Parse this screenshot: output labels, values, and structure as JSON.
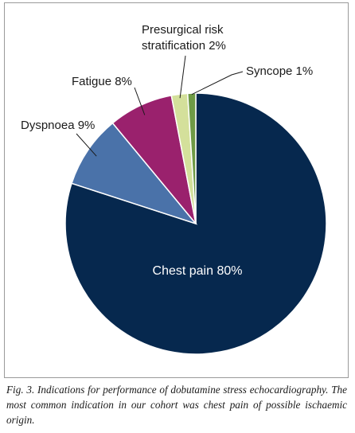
{
  "chart_data": {
    "type": "pie",
    "slices": [
      {
        "label": "Chest pain 80%",
        "value": 80,
        "color": "#06284e"
      },
      {
        "label": "Dyspnoea 9%",
        "value": 9,
        "color": "#4a72a9"
      },
      {
        "label": "Fatigue 8%",
        "value": 8,
        "color": "#9a216d"
      },
      {
        "label": "Presurgical risk\nstratification 2%",
        "value": 2,
        "color": "#d4e09b"
      },
      {
        "label": "Syncope 1%",
        "value": 1,
        "color": "#6e9a45"
      }
    ]
  },
  "caption": "Fig. 3. Indications for performance of dobutamine stress echocardiography. The most common indication in our cohort was chest pain of possible ischaemic origin."
}
